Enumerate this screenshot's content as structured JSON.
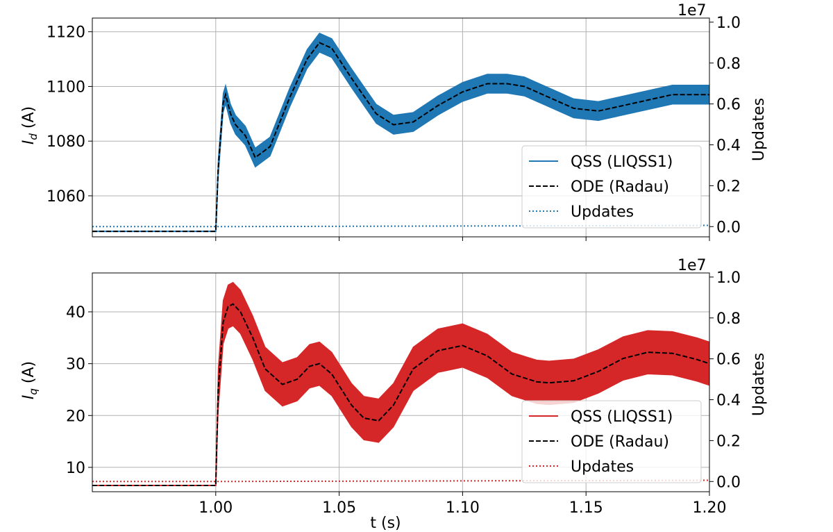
{
  "chart_data": [
    {
      "type": "line",
      "xlabel": "",
      "ylabel": "I",
      "ylabel_sub": "d",
      "ylabel_unit": " (A)",
      "xlim": [
        0.95,
        1.2
      ],
      "ylim": [
        1045,
        1125
      ],
      "yticks": [
        1060,
        1080,
        1100,
        1120
      ],
      "xticks": [
        1.0,
        1.05,
        1.1,
        1.15,
        1.2
      ],
      "xtick_labels_visible": false,
      "y2label": "Updates",
      "y2lim": [
        -500000.0,
        10200000.0
      ],
      "y2ticks": [
        0.0,
        0.2,
        0.4,
        0.6,
        0.8,
        1.0
      ],
      "y2tick_labels": [
        "0.0",
        "0.2",
        "0.4",
        "0.6",
        "0.8",
        "1.0"
      ],
      "y2_exponent": "1e7",
      "grid": true,
      "legend_position": "lower-right",
      "series": [
        {
          "name": "QSS (LIQSS1)",
          "style": "solid-band",
          "color": "#1f77b4",
          "band_halfwidth_units": 3.5,
          "x": [
            0.95,
            1.0,
            1.001,
            1.003,
            1.004,
            1.006,
            1.008,
            1.012,
            1.016,
            1.022,
            1.03,
            1.037,
            1.042,
            1.047,
            1.055,
            1.065,
            1.072,
            1.08,
            1.09,
            1.1,
            1.11,
            1.118,
            1.125,
            1.135,
            1.145,
            1.155,
            1.165,
            1.175,
            1.185,
            1.192,
            1.2
          ],
          "y": [
            1047,
            1047,
            1070,
            1094,
            1097,
            1090,
            1086,
            1082,
            1074,
            1078,
            1096,
            1110,
            1116,
            1114,
            1103,
            1090,
            1086,
            1087,
            1093,
            1098,
            1101,
            1101,
            1100,
            1096,
            1092,
            1091,
            1093,
            1095,
            1097,
            1097,
            1097
          ]
        },
        {
          "name": "ODE (Radau)",
          "style": "dashed",
          "color": "#000000",
          "x": [
            0.95,
            1.0,
            1.001,
            1.003,
            1.004,
            1.006,
            1.008,
            1.012,
            1.016,
            1.022,
            1.03,
            1.037,
            1.042,
            1.047,
            1.055,
            1.065,
            1.072,
            1.08,
            1.09,
            1.1,
            1.11,
            1.118,
            1.125,
            1.135,
            1.145,
            1.155,
            1.165,
            1.175,
            1.185,
            1.192,
            1.2
          ],
          "y": [
            1047,
            1047,
            1070,
            1094,
            1097,
            1090,
            1086,
            1082,
            1074,
            1078,
            1096,
            1110,
            1116,
            1114,
            1103,
            1090,
            1086,
            1087,
            1093,
            1098,
            1101,
            1101,
            1100,
            1096,
            1092,
            1091,
            1093,
            1095,
            1097,
            1097,
            1097
          ]
        },
        {
          "name": "Updates",
          "style": "dotted",
          "color": "#1f77b4",
          "axis": "right",
          "x": [
            0.95,
            1.0,
            1.2
          ],
          "y": [
            0,
            0,
            60000
          ]
        }
      ]
    },
    {
      "type": "line",
      "xlabel": "t (s)",
      "ylabel": "I",
      "ylabel_sub": "q",
      "ylabel_unit": " (A)",
      "xlim": [
        0.95,
        1.2
      ],
      "ylim": [
        5.3,
        47.5
      ],
      "yticks": [
        10,
        20,
        30,
        40
      ],
      "xticks": [
        1.0,
        1.05,
        1.1,
        1.15,
        1.2
      ],
      "xtick_labels": [
        "1.00",
        "1.05",
        "1.10",
        "1.15",
        "1.20"
      ],
      "xtick_labels_visible": true,
      "y2label": "Updates",
      "y2lim": [
        -500000.0,
        10200000.0
      ],
      "y2ticks": [
        0.0,
        0.2,
        0.4,
        0.6,
        0.8,
        1.0
      ],
      "y2tick_labels": [
        "0.0",
        "0.2",
        "0.4",
        "0.6",
        "0.8",
        "1.0"
      ],
      "y2_exponent": "1e7",
      "grid": true,
      "legend_position": "lower-right",
      "series": [
        {
          "name": "QSS (LIQSS1)",
          "style": "solid-band",
          "color": "#d62728",
          "band_halfwidth_units": 4.2,
          "x": [
            0.95,
            1.0,
            1.001,
            1.003,
            1.005,
            1.007,
            1.01,
            1.015,
            1.02,
            1.027,
            1.033,
            1.038,
            1.042,
            1.047,
            1.055,
            1.06,
            1.066,
            1.072,
            1.08,
            1.09,
            1.1,
            1.11,
            1.12,
            1.13,
            1.135,
            1.145,
            1.155,
            1.165,
            1.175,
            1.185,
            1.195,
            1.2
          ],
          "y": [
            6.5,
            6.5,
            25,
            38,
            41,
            41.5,
            40,
            35,
            29,
            26,
            27,
            29.5,
            30,
            28,
            22,
            19.5,
            19,
            22,
            29,
            32.5,
            33.5,
            31.5,
            28,
            26.5,
            26.3,
            26.7,
            28.5,
            31,
            32.2,
            32,
            30.8,
            30
          ]
        },
        {
          "name": "ODE (Radau)",
          "style": "dashed",
          "color": "#000000",
          "x": [
            0.95,
            1.0,
            1.001,
            1.003,
            1.005,
            1.007,
            1.01,
            1.015,
            1.02,
            1.027,
            1.033,
            1.038,
            1.042,
            1.047,
            1.055,
            1.06,
            1.066,
            1.072,
            1.08,
            1.09,
            1.1,
            1.11,
            1.12,
            1.13,
            1.135,
            1.145,
            1.155,
            1.165,
            1.175,
            1.185,
            1.195,
            1.2
          ],
          "y": [
            6.5,
            6.5,
            25,
            38,
            41,
            41.5,
            40,
            35,
            29,
            26,
            27,
            29.5,
            30,
            28,
            22,
            19.5,
            19,
            22,
            29,
            32.5,
            33.5,
            31.5,
            28,
            26.5,
            26.3,
            26.7,
            28.5,
            31,
            32.2,
            32,
            30.8,
            30
          ]
        },
        {
          "name": "Updates",
          "style": "dotted",
          "color": "#d62728",
          "axis": "right",
          "x": [
            0.95,
            1.0,
            1.2
          ],
          "y": [
            0,
            0,
            60000
          ]
        }
      ]
    }
  ]
}
